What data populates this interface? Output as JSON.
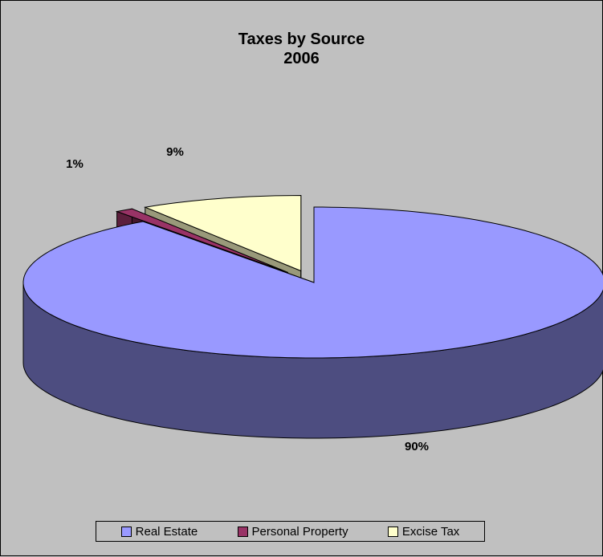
{
  "chart_data": {
    "type": "pie",
    "title": "Taxes by Source",
    "subtitle": "2006",
    "categories": [
      "Real Estate",
      "Personal Property",
      "Excise Tax"
    ],
    "values": [
      90,
      1,
      9
    ],
    "data_labels": [
      "90%",
      "1%",
      "9%"
    ],
    "colors": [
      "#9999ff",
      "#993366",
      "#ffffcc"
    ],
    "legend_position": "bottom",
    "style": "3d-exploded"
  }
}
